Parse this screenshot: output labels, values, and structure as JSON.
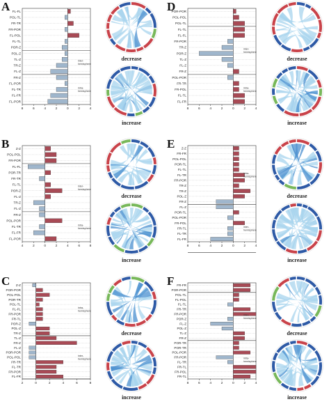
{
  "colors": {
    "increase_bar": "#a84a55",
    "decrease_bar": "#9fb6cc",
    "chord_light": "#a8d4ee",
    "chord_dark": "#4a8fcf",
    "ring_blue": "#2e5aa6",
    "ring_red": "#c9434a",
    "ring_green": "#78b85a"
  },
  "group_labels": {
    "intra": "intra-hemisphere",
    "inter": "inter-hemisphere"
  },
  "chord_labels": {
    "decrease": "decrease",
    "increase": "increase"
  },
  "panels": [
    {
      "id": "A",
      "axis_ticks": [
        "8",
        "6",
        "4",
        "2",
        "0",
        "2",
        "4"
      ],
      "dividers_after": [
        7,
        11
      ],
      "group_label_side": [
        null,
        "inter",
        "intra"
      ],
      "chart_data": {
        "type": "bar",
        "categories": [
          "FL-FL",
          "POL-TL",
          "FR-TR",
          "FR-POR",
          "FL-POL",
          "FL-TL",
          "POR-Z",
          "POL-Z",
          "TL-Z",
          "TR-Z",
          "FL-Z",
          "FR-Z",
          "FL-POR",
          "FL-TR",
          "FL-FR",
          "FL-POR"
        ],
        "values": [
          0.5,
          -0.5,
          1,
          -0.5,
          2,
          -0.5,
          -1,
          -0.5,
          -1,
          -2,
          -3,
          -2,
          -0.5,
          -2,
          -3,
          -3.5
        ],
        "xlim": [
          -8,
          4
        ]
      }
    },
    {
      "id": "B",
      "axis_ticks": [
        "4",
        "2",
        "0",
        "2",
        "4",
        "6",
        "8"
      ],
      "dividers_after": [
        3,
        11
      ],
      "group_label_side": [
        null,
        "inter",
        "intra"
      ],
      "chart_data": {
        "type": "bar",
        "categories": [
          "Z-Z",
          "POL-POL",
          "FR-POR",
          "FL-FL",
          "POR-TR",
          "FR-TR",
          "FL-TL",
          "POR-Z",
          "FL-Z",
          "TR-Z",
          "FL-Z",
          "FR-Z",
          "POL-POR",
          "FL-TR",
          "FL-FR",
          "FL-POR"
        ],
        "values": [
          1,
          2,
          2,
          -3,
          1,
          -1,
          1,
          3,
          1,
          -2,
          -1,
          -1,
          3,
          -1,
          -2,
          2
        ],
        "xlim": [
          -4,
          8
        ]
      }
    },
    {
      "id": "C",
      "axis_ticks": [
        "2",
        "0",
        "2",
        "4",
        "6",
        "8"
      ],
      "dividers_after": [
        11,
        20
      ],
      "group_label_side": [
        "intra",
        "inter",
        null
      ],
      "chart_data": {
        "type": "bar",
        "categories": [
          "Z-Z",
          "POR-POR",
          "POL-POL",
          "POR-TR",
          "POL-TL",
          "FL-FL",
          "FR-POR",
          "FR-TL",
          "POR-Z",
          "POL-Z",
          "TR-Z",
          "TL-Z",
          "FR-Z",
          "FL-Z",
          "POR-POR",
          "POL-POL",
          "FR-TR",
          "FL-TR",
          "FR-POR",
          "FL-FR"
        ],
        "values": [
          -0.5,
          1,
          2,
          1,
          0.5,
          1,
          1,
          1,
          -1,
          2,
          2,
          3,
          6,
          -1,
          -1,
          -1,
          4,
          3,
          3,
          4
        ],
        "xlim": [
          -2,
          8
        ]
      }
    },
    {
      "id": "D",
      "axis_ticks": [
        "8",
        "6",
        "4",
        "2",
        "0",
        "2",
        "4"
      ],
      "dividers_after": [
        3,
        11
      ],
      "group_label_side": [
        null,
        "inter",
        "intra"
      ],
      "chart_data": {
        "type": "bar",
        "categories": [
          "POR-POR",
          "POL-POL",
          "POL-TL",
          "FL-TL",
          "FL-FL",
          "FR-POR",
          "TR-Z",
          "POR-Z",
          "TL-Z",
          "FL-Z",
          "FR-Z",
          "POL-POR",
          "FR-TR",
          "FR-POL",
          "FL-TL",
          "FL-FR"
        ],
        "values": [
          0.5,
          1,
          2,
          2,
          2,
          -1,
          -2,
          -6,
          -2,
          -1,
          1,
          -1,
          1,
          1,
          2,
          2
        ],
        "xlim": [
          -8,
          4
        ]
      }
    },
    {
      "id": "E",
      "axis_ticks": [
        "8",
        "6",
        "4",
        "2",
        "0",
        "2",
        "4"
      ],
      "dividers_after": [
        11,
        20
      ],
      "group_label_side": [
        "intra",
        "inter",
        null
      ],
      "chart_data": {
        "type": "bar",
        "categories": [
          "Z-Z",
          "FR-FR",
          "POL-POL",
          "POR-TL",
          "FL-TL",
          "FL-TR",
          "FR-POR",
          "TR-Z",
          "TR-Z",
          "POL-Z",
          "FR-Z",
          "FL-Z",
          "POR-TL",
          "POL-POR",
          "FR-POL",
          "FR-TL",
          "FL-TR",
          "FL-FR"
        ],
        "values": [
          1,
          1,
          1,
          1,
          1,
          2,
          2,
          1,
          3,
          2,
          -3,
          -3,
          1,
          -1,
          2,
          -1,
          -1,
          -4
        ],
        "xlim": [
          -8,
          4
        ]
      }
    },
    {
      "id": "F",
      "axis_ticks": [
        "8",
        "6",
        "4",
        "2",
        "0",
        "2",
        "4"
      ],
      "dividers_after": [
        2,
        12
      ],
      "group_label_side": [
        null,
        "inter",
        "intra"
      ],
      "chart_data": {
        "type": "bar",
        "categories": [
          "FR-FR",
          "POR-POR",
          "POL-TL",
          "FL-POL",
          "FL-TL",
          "FR-TR",
          "FR-POR",
          "POR-Z",
          "FL-Z",
          "POL-Z",
          "TL-Z",
          "FR-Z",
          "POR-TR",
          "POR-TR",
          "POL-POR",
          "FR-POR",
          "FL-TR",
          "FR-TL",
          "FR-POL",
          "FR-TL"
        ],
        "values": [
          3,
          3,
          1,
          1,
          -1,
          3,
          4,
          -1,
          -4,
          -2,
          2,
          2,
          1,
          1,
          3,
          -3,
          -1,
          4,
          4,
          3
        ],
        "xlim": [
          -8,
          4
        ]
      }
    }
  ]
}
